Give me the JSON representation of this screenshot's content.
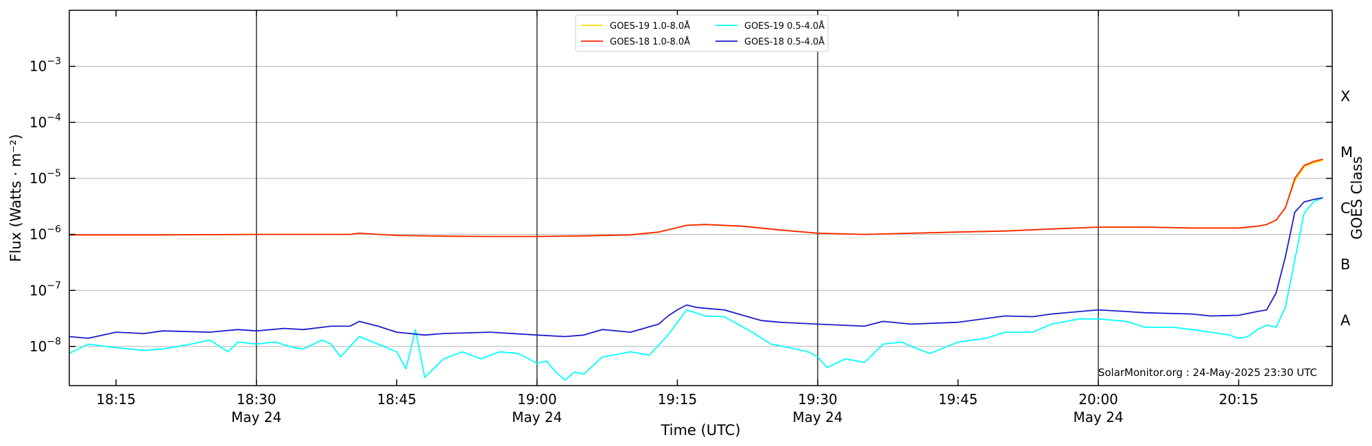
{
  "chart_data": {
    "type": "line",
    "xlabel": "Time (UTC)",
    "ylabel": "Flux (Watts · m⁻²)",
    "y_scale": "log",
    "ylim": [
      2e-09,
      0.01
    ],
    "xlim": [
      "18:10",
      "20:25"
    ],
    "x_ticks": [
      {
        "time": "18:15",
        "label": "18:15",
        "date": ""
      },
      {
        "time": "18:30",
        "label": "18:30",
        "date": "May 24"
      },
      {
        "time": "18:45",
        "label": "18:45",
        "date": ""
      },
      {
        "time": "19:00",
        "label": "19:00",
        "date": "May 24"
      },
      {
        "time": "19:15",
        "label": "19:15",
        "date": ""
      },
      {
        "time": "19:30",
        "label": "19:30",
        "date": "May 24"
      },
      {
        "time": "19:45",
        "label": "19:45",
        "date": ""
      },
      {
        "time": "20:00",
        "label": "20:00",
        "date": "May 24"
      },
      {
        "time": "20:15",
        "label": "20:15",
        "date": ""
      }
    ],
    "y_ticks": [
      {
        "value": 1e-08,
        "base": "10",
        "exp": "−8"
      },
      {
        "value": 1e-07,
        "base": "10",
        "exp": "−7"
      },
      {
        "value": 1e-06,
        "base": "10",
        "exp": "−6"
      },
      {
        "value": 1e-05,
        "base": "10",
        "exp": "−5"
      },
      {
        "value": 0.0001,
        "base": "10",
        "exp": "−4"
      },
      {
        "value": 0.001,
        "base": "10",
        "exp": "−3"
      }
    ],
    "right_axis": {
      "label": "GOES Class",
      "classes": [
        {
          "name": "A",
          "value": 3e-08
        },
        {
          "name": "B",
          "value": 3e-07
        },
        {
          "name": "C",
          "value": 3e-06
        },
        {
          "name": "M",
          "value": 3e-05
        },
        {
          "name": "X",
          "value": 0.0003
        }
      ]
    },
    "grid": {
      "horizontal": true,
      "vertical_at": [
        "18:30",
        "19:00",
        "19:30",
        "20:00"
      ]
    },
    "legend_position": "top-center",
    "annotation": "SolarMonitor.org : 24-May-2025 23:30 UTC",
    "series": [
      {
        "name": "GOES-19 1.0-8.0Å",
        "color": "#ffd700",
        "x": [
          "18:10",
          "18:15",
          "18:20",
          "18:25",
          "18:30",
          "18:35",
          "18:40",
          "18:41",
          "18:45",
          "18:50",
          "18:55",
          "19:00",
          "19:05",
          "19:10",
          "19:13",
          "19:16",
          "19:18",
          "19:22",
          "19:26",
          "19:30",
          "19:35",
          "19:40",
          "19:45",
          "19:50",
          "19:55",
          "20:00",
          "20:05",
          "20:10",
          "20:15",
          "20:17",
          "20:18",
          "20:19",
          "20:20",
          "20:21",
          "20:22",
          "20:23",
          "20:24"
        ],
        "values": [
          9.8e-07,
          9.8e-07,
          9.8e-07,
          9.9e-07,
          1e-06,
          1e-06,
          1e-06,
          1.05e-06,
          9.6e-07,
          9.3e-07,
          9.2e-07,
          9.2e-07,
          9.4e-07,
          9.8e-07,
          1.1e-06,
          1.45e-06,
          1.5e-06,
          1.4e-06,
          1.2e-06,
          1.05e-06,
          1e-06,
          1.05e-06,
          1.1e-06,
          1.15e-06,
          1.25e-06,
          1.35e-06,
          1.35e-06,
          1.3e-06,
          1.3e-06,
          1.4e-06,
          1.5e-06,
          1.8e-06,
          3e-06,
          9e-06,
          1.6e-05,
          1.9e-05,
          2.1e-05
        ]
      },
      {
        "name": "GOES-18 1.0-8.0Å",
        "color": "#ff2200",
        "x": [
          "18:10",
          "18:15",
          "18:20",
          "18:25",
          "18:30",
          "18:35",
          "18:40",
          "18:41",
          "18:45",
          "18:50",
          "18:55",
          "19:00",
          "19:05",
          "19:10",
          "19:13",
          "19:16",
          "19:18",
          "19:22",
          "19:26",
          "19:30",
          "19:35",
          "19:40",
          "19:45",
          "19:50",
          "19:55",
          "20:00",
          "20:05",
          "20:10",
          "20:15",
          "20:17",
          "20:18",
          "20:19",
          "20:20",
          "20:21",
          "20:22",
          "20:23",
          "20:24"
        ],
        "values": [
          9.8e-07,
          9.8e-07,
          9.8e-07,
          9.9e-07,
          1e-06,
          1e-06,
          1e-06,
          1.05e-06,
          9.6e-07,
          9.3e-07,
          9.2e-07,
          9.2e-07,
          9.4e-07,
          9.8e-07,
          1.1e-06,
          1.45e-06,
          1.5e-06,
          1.4e-06,
          1.2e-06,
          1.05e-06,
          1e-06,
          1.05e-06,
          1.1e-06,
          1.15e-06,
          1.25e-06,
          1.35e-06,
          1.35e-06,
          1.3e-06,
          1.3e-06,
          1.4e-06,
          1.5e-06,
          1.8e-06,
          3e-06,
          1e-05,
          1.7e-05,
          2e-05,
          2.2e-05
        ]
      },
      {
        "name": "GOES-19 0.5-4.0Å",
        "color": "#00ffff",
        "x": [
          "18:10",
          "18:12",
          "18:15",
          "18:18",
          "18:20",
          "18:23",
          "18:25",
          "18:27",
          "18:28",
          "18:30",
          "18:32",
          "18:34",
          "18:35",
          "18:37",
          "18:38",
          "18:39",
          "18:41",
          "18:43",
          "18:45",
          "18:46",
          "18:47",
          "18:48",
          "18:50",
          "18:52",
          "18:54",
          "18:56",
          "18:58",
          "19:00",
          "19:01",
          "19:02",
          "19:03",
          "19:04",
          "19:05",
          "19:07",
          "19:10",
          "19:12",
          "19:14",
          "19:16",
          "19:18",
          "19:20",
          "19:23",
          "19:25",
          "19:27",
          "19:29",
          "19:30",
          "19:31",
          "19:33",
          "19:35",
          "19:37",
          "19:39",
          "19:40",
          "19:42",
          "19:45",
          "19:48",
          "19:50",
          "19:53",
          "19:55",
          "19:58",
          "20:00",
          "20:03",
          "20:05",
          "20:08",
          "20:10",
          "20:12",
          "20:14",
          "20:15",
          "20:16",
          "20:17",
          "20:18",
          "20:19",
          "20:20",
          "20:21",
          "20:22",
          "20:23",
          "20:24"
        ],
        "values": [
          7.5e-09,
          1.1e-08,
          9.5e-09,
          8.5e-09,
          9e-09,
          1.1e-08,
          1.3e-08,
          8e-09,
          1.2e-08,
          1.1e-08,
          1.2e-08,
          9.5e-09,
          9e-09,
          1.3e-08,
          1.1e-08,
          6.5e-09,
          1.5e-08,
          1.1e-08,
          8e-09,
          4e-09,
          2e-08,
          2.8e-09,
          6e-09,
          8e-09,
          6e-09,
          8e-09,
          7.5e-09,
          5e-09,
          5.5e-09,
          3.5e-09,
          2.5e-09,
          3.5e-09,
          3.2e-09,
          6.5e-09,
          8e-09,
          7e-09,
          1.6e-08,
          4.5e-08,
          3.5e-08,
          3.4e-08,
          1.8e-08,
          1.1e-08,
          9.5e-09,
          8e-09,
          6.5e-09,
          4.2e-09,
          6e-09,
          5.2e-09,
          1.1e-08,
          1.2e-08,
          1e-08,
          7.5e-09,
          1.2e-08,
          1.4e-08,
          1.8e-08,
          1.8e-08,
          2.5e-08,
          3.1e-08,
          3.1e-08,
          2.8e-08,
          2.2e-08,
          2.2e-08,
          2e-08,
          1.8e-08,
          1.6e-08,
          1.4e-08,
          1.5e-08,
          2e-08,
          2.4e-08,
          2.2e-08,
          5e-08,
          3.5e-07,
          2.4e-06,
          3.8e-06,
          4.5e-06
        ]
      },
      {
        "name": "GOES-18 0.5-4.0Å",
        "color": "#1a1acc",
        "x": [
          "18:10",
          "18:12",
          "18:15",
          "18:18",
          "18:20",
          "18:25",
          "18:28",
          "18:30",
          "18:33",
          "18:35",
          "18:38",
          "18:40",
          "18:41",
          "18:43",
          "18:45",
          "18:48",
          "18:50",
          "18:55",
          "19:00",
          "19:03",
          "19:05",
          "19:07",
          "19:10",
          "19:13",
          "19:14",
          "19:15",
          "19:16",
          "19:17",
          "19:18",
          "19:20",
          "19:22",
          "19:24",
          "19:26",
          "19:30",
          "19:35",
          "19:37",
          "19:40",
          "19:45",
          "19:50",
          "19:53",
          "19:55",
          "20:00",
          "20:03",
          "20:05",
          "20:10",
          "20:12",
          "20:15",
          "20:16",
          "20:17",
          "20:18",
          "20:19",
          "20:20",
          "20:21",
          "20:22",
          "20:23",
          "20:24"
        ],
        "values": [
          1.5e-08,
          1.4e-08,
          1.8e-08,
          1.7e-08,
          1.9e-08,
          1.8e-08,
          2e-08,
          1.9e-08,
          2.1e-08,
          2e-08,
          2.3e-08,
          2.3e-08,
          2.8e-08,
          2.3e-08,
          1.8e-08,
          1.6e-08,
          1.7e-08,
          1.8e-08,
          1.6e-08,
          1.5e-08,
          1.6e-08,
          2e-08,
          1.8e-08,
          2.5e-08,
          3.5e-08,
          4.5e-08,
          5.5e-08,
          5e-08,
          4.8e-08,
          4.5e-08,
          3.6e-08,
          2.9e-08,
          2.7e-08,
          2.5e-08,
          2.3e-08,
          2.8e-08,
          2.5e-08,
          2.7e-08,
          3.5e-08,
          3.4e-08,
          3.8e-08,
          4.5e-08,
          4.2e-08,
          4e-08,
          3.8e-08,
          3.5e-08,
          3.6e-08,
          3.9e-08,
          4.2e-08,
          4.5e-08,
          9e-08,
          4e-07,
          2.5e-06,
          3.8e-06,
          4.2e-06,
          4.5e-06
        ]
      }
    ]
  }
}
